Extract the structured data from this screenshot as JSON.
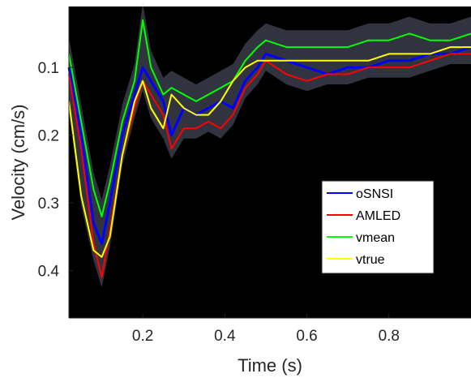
{
  "chart_data": {
    "type": "line",
    "title": "",
    "xlabel": "Time (s)",
    "ylabel": "Velocity (cm/s)",
    "xlim": [
      0.02,
      1.0
    ],
    "ylim": [
      0.47,
      0.01
    ],
    "y_reversed": true,
    "xticks": [
      0.2,
      0.4,
      0.6,
      0.8
    ],
    "xtick_labels": [
      "0.2",
      "0.4",
      "0.6",
      "0.8"
    ],
    "yticks": [
      0.1,
      0.2,
      0.3,
      0.4
    ],
    "ytick_labels": [
      "0.1",
      "0.2",
      "0.3",
      "0.4"
    ],
    "grid": false,
    "background": "#000000",
    "legend_position": "lower-right",
    "x": [
      0.02,
      0.05,
      0.08,
      0.1,
      0.12,
      0.15,
      0.18,
      0.2,
      0.22,
      0.25,
      0.27,
      0.3,
      0.33,
      0.36,
      0.39,
      0.42,
      0.45,
      0.48,
      0.5,
      0.55,
      0.6,
      0.65,
      0.7,
      0.75,
      0.8,
      0.85,
      0.9,
      0.95,
      1.0
    ],
    "series": [
      {
        "name": "oSNSI",
        "color": "#0000ff",
        "values": [
          0.1,
          0.2,
          0.33,
          0.36,
          0.3,
          0.2,
          0.14,
          0.1,
          0.12,
          0.15,
          0.2,
          0.16,
          0.17,
          0.16,
          0.15,
          0.16,
          0.12,
          0.1,
          0.08,
          0.09,
          0.1,
          0.11,
          0.1,
          0.1,
          0.09,
          0.09,
          0.08,
          0.08,
          0.07
        ]
      },
      {
        "name": "AMLED",
        "color": "#ff0000",
        "values": [
          0.11,
          0.22,
          0.36,
          0.41,
          0.34,
          0.23,
          0.16,
          0.12,
          0.14,
          0.17,
          0.22,
          0.19,
          0.19,
          0.18,
          0.19,
          0.17,
          0.13,
          0.11,
          0.09,
          0.11,
          0.12,
          0.11,
          0.11,
          0.1,
          0.1,
          0.1,
          0.09,
          0.08,
          0.08
        ]
      },
      {
        "name": "vmean",
        "color": "#00ff00",
        "values": [
          0.08,
          0.18,
          0.28,
          0.32,
          0.27,
          0.18,
          0.12,
          0.03,
          0.1,
          0.14,
          0.13,
          0.14,
          0.15,
          0.14,
          0.13,
          0.12,
          0.09,
          0.07,
          0.06,
          0.07,
          0.07,
          0.07,
          0.07,
          0.06,
          0.06,
          0.05,
          0.06,
          0.06,
          0.05
        ]
      },
      {
        "name": "vtrue",
        "color": "#ffff00",
        "values": [
          0.15,
          0.29,
          0.37,
          0.38,
          0.35,
          0.23,
          0.15,
          0.12,
          0.16,
          0.19,
          0.14,
          0.16,
          0.17,
          0.17,
          0.15,
          0.12,
          0.1,
          0.09,
          0.09,
          0.09,
          0.09,
          0.09,
          0.09,
          0.09,
          0.08,
          0.08,
          0.08,
          0.07,
          0.07
        ]
      }
    ]
  }
}
